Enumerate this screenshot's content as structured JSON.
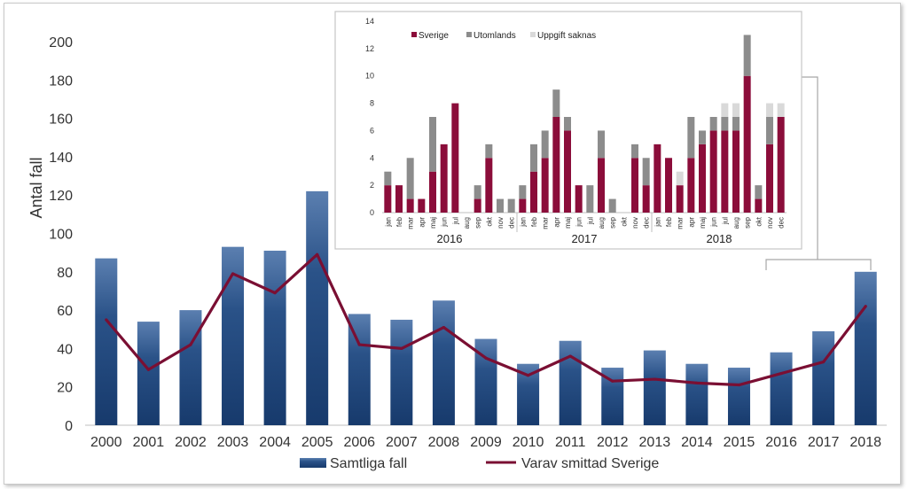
{
  "chart_data": [
    {
      "type": "bar+line",
      "title": "",
      "ylabel": "Antal fall",
      "xlabel": "",
      "ylim": [
        0,
        200
      ],
      "yticks": [
        0,
        20,
        40,
        60,
        80,
        100,
        120,
        140,
        160,
        180,
        200
      ],
      "categories": [
        "2000",
        "2001",
        "2002",
        "2003",
        "2004",
        "2005",
        "2006",
        "2007",
        "2008",
        "2009",
        "2010",
        "2011",
        "2012",
        "2013",
        "2014",
        "2015",
        "2016",
        "2017",
        "2018"
      ],
      "series": [
        {
          "name": "Samtliga fall",
          "kind": "bar",
          "color": "#2a5288",
          "values": [
            87,
            54,
            60,
            93,
            91,
            122,
            58,
            55,
            65,
            45,
            32,
            44,
            30,
            39,
            32,
            30,
            38,
            49,
            80
          ]
        },
        {
          "name": "Varav smittad Sverige",
          "kind": "line",
          "color": "#7a0f33",
          "values": [
            55,
            29,
            42,
            79,
            69,
            89,
            42,
            40,
            51,
            35,
            26,
            36,
            23,
            24,
            22,
            21,
            27,
            33,
            62
          ]
        }
      ],
      "legend_position": "bottom"
    },
    {
      "type": "stacked-bar",
      "title": "",
      "ylim": [
        0,
        14
      ],
      "yticks": [
        0,
        2,
        4,
        6,
        8,
        10,
        12,
        14
      ],
      "categories": [
        "jan",
        "feb",
        "mar",
        "apr",
        "maj",
        "jun",
        "jul",
        "aug",
        "sep",
        "okt",
        "nov",
        "dec",
        "jan",
        "feb",
        "mar",
        "apr",
        "maj",
        "jun",
        "jul",
        "aug",
        "sep",
        "okt",
        "nov",
        "dec",
        "jan",
        "feb",
        "mar",
        "apr",
        "maj",
        "jun",
        "jul",
        "aug",
        "sep",
        "okt",
        "nov",
        "dec"
      ],
      "year_labels": [
        "2016",
        "2017",
        "2018"
      ],
      "series": [
        {
          "name": "Sverige",
          "color": "#8b0d3a",
          "values": [
            2,
            2,
            1,
            1,
            3,
            5,
            8,
            0,
            1,
            4,
            0,
            0,
            1,
            3,
            4,
            7,
            6,
            2,
            0,
            4,
            0,
            0,
            4,
            2,
            5,
            4,
            2,
            4,
            5,
            6,
            6,
            6,
            10,
            1,
            5,
            7
          ]
        },
        {
          "name": "Utomlands",
          "color": "#8c8c8c",
          "values": [
            1,
            0,
            3,
            0,
            4,
            0,
            0,
            0,
            1,
            1,
            1,
            1,
            1,
            2,
            2,
            2,
            1,
            0,
            2,
            2,
            1,
            0,
            1,
            2,
            0,
            0,
            0,
            3,
            1,
            1,
            1,
            1,
            3,
            1,
            2,
            0
          ]
        },
        {
          "name": "Uppgift saknas",
          "color": "#d9d9d9",
          "values": [
            0,
            0,
            0,
            0,
            0,
            0,
            0,
            0,
            0,
            0,
            0,
            0,
            0,
            0,
            0,
            0,
            0,
            0,
            0,
            0,
            0,
            0,
            0,
            0,
            0,
            0,
            1,
            0,
            0,
            0,
            1,
            1,
            0,
            0,
            1,
            1
          ]
        }
      ],
      "legend_position": "top-left"
    }
  ]
}
